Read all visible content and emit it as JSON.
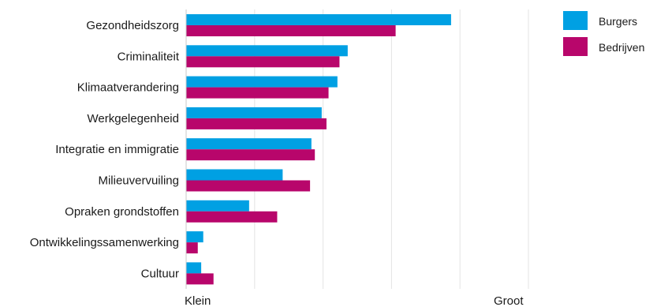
{
  "chart_data": {
    "type": "bar",
    "orientation": "horizontal",
    "categories": [
      "Gezondheidszorg",
      "Criminaliteit",
      "Klimaatverandering",
      "Werkgelegenheid",
      "Integratie en immigratie",
      "Milieuvervuiling",
      "Opraken grondstoffen",
      "Ontwikkelingssamenwerking",
      "Cultuur"
    ],
    "series": [
      {
        "name": "Burgers",
        "color": "#00a0e3",
        "values": [
          3.87,
          2.36,
          2.21,
          1.98,
          1.83,
          1.41,
          0.92,
          0.25,
          0.22
        ]
      },
      {
        "name": "Bedrijven",
        "color": "#b8066b",
        "values": [
          3.06,
          2.24,
          2.08,
          2.05,
          1.88,
          1.81,
          1.33,
          0.17,
          0.4
        ]
      }
    ],
    "xlim": [
      0,
      5
    ],
    "axis_labels": {
      "min": "Klein",
      "max": "Groot"
    },
    "grid": true,
    "legend_position": "top-right"
  }
}
